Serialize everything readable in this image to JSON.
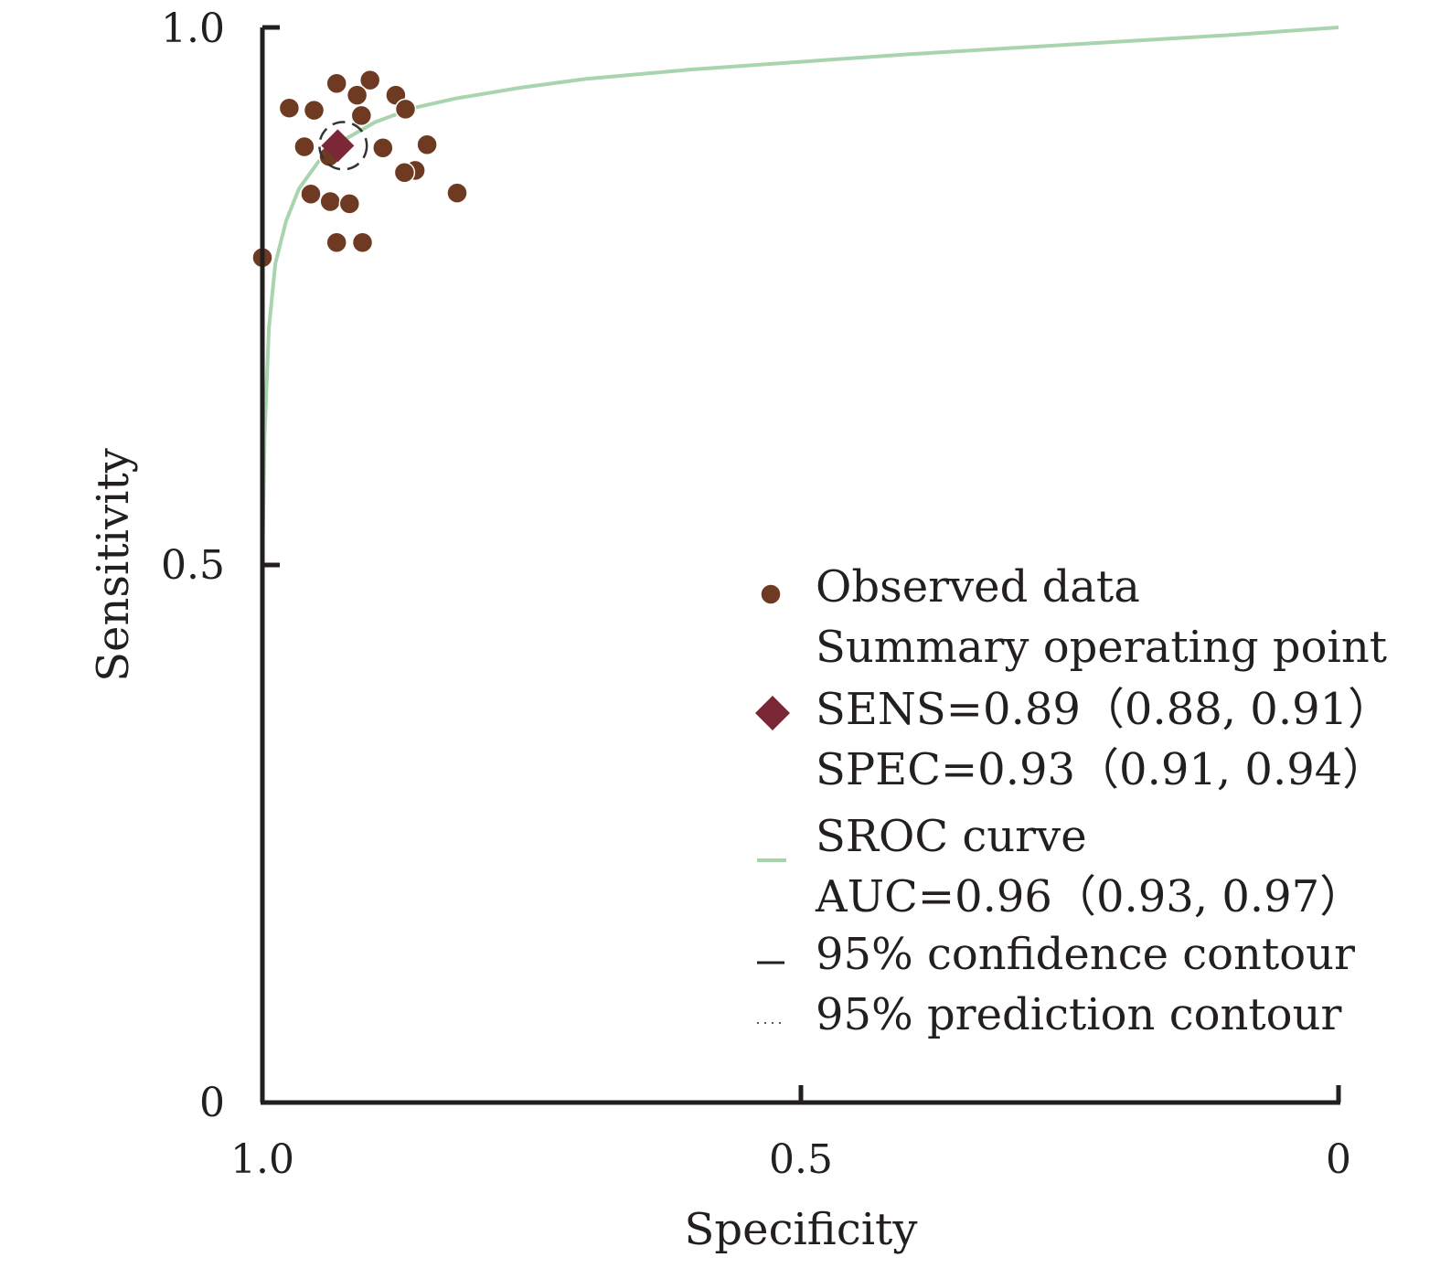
{
  "chart_data": {
    "type": "scatter",
    "title": "",
    "xlabel": "Specificity",
    "ylabel": "Sensitivity",
    "x_reversed": true,
    "xlim": [
      1.0,
      0
    ],
    "ylim": [
      0,
      1.0
    ],
    "x_ticks": [
      "1.0",
      "0.5",
      "0"
    ],
    "x_tick_values": [
      1.0,
      0.5,
      0
    ],
    "y_ticks": [
      "0",
      "0.5",
      "1.0"
    ],
    "y_tick_values": [
      0,
      0.5,
      1.0
    ],
    "grid": false,
    "legend_position": "bottom-right",
    "colors": {
      "observed": "#6e3b22",
      "summary": "#7b2736",
      "sroc": "#a8d4ae",
      "axis": "#231f20",
      "confidence": "#333333"
    },
    "series": [
      {
        "name": "Observed data",
        "kind": "scatter",
        "points": [
          {
            "spec": 1.0,
            "sens": 0.786
          },
          {
            "spec": 0.975,
            "sens": 0.925
          },
          {
            "spec": 0.952,
            "sens": 0.923
          },
          {
            "spec": 0.961,
            "sens": 0.889
          },
          {
            "spec": 0.955,
            "sens": 0.845
          },
          {
            "spec": 0.931,
            "sens": 0.948
          },
          {
            "spec": 0.9,
            "sens": 0.951
          },
          {
            "spec": 0.912,
            "sens": 0.937
          },
          {
            "spec": 0.908,
            "sens": 0.918
          },
          {
            "spec": 0.876,
            "sens": 0.937
          },
          {
            "spec": 0.867,
            "sens": 0.924
          },
          {
            "spec": 0.888,
            "sens": 0.888
          },
          {
            "spec": 0.847,
            "sens": 0.891
          },
          {
            "spec": 0.858,
            "sens": 0.867
          },
          {
            "spec": 0.868,
            "sens": 0.865
          },
          {
            "spec": 0.937,
            "sens": 0.838
          },
          {
            "spec": 0.919,
            "sens": 0.836
          },
          {
            "spec": 0.819,
            "sens": 0.846
          },
          {
            "spec": 0.931,
            "sens": 0.8
          },
          {
            "spec": 0.907,
            "sens": 0.8
          },
          {
            "spec": 0.938,
            "sens": 0.88
          }
        ]
      },
      {
        "name": "Summary operating point",
        "kind": "summary",
        "spec": 0.93,
        "sens": 0.89
      },
      {
        "name": "SROC curve",
        "kind": "line",
        "points": [
          {
            "spec": 1.0,
            "sens": 0.5
          },
          {
            "spec": 0.998,
            "sens": 0.62
          },
          {
            "spec": 0.994,
            "sens": 0.72
          },
          {
            "spec": 0.988,
            "sens": 0.78
          },
          {
            "spec": 0.978,
            "sens": 0.82
          },
          {
            "spec": 0.966,
            "sens": 0.85
          },
          {
            "spec": 0.948,
            "sens": 0.875
          },
          {
            "spec": 0.925,
            "sens": 0.895
          },
          {
            "spec": 0.895,
            "sens": 0.912
          },
          {
            "spec": 0.86,
            "sens": 0.925
          },
          {
            "spec": 0.82,
            "sens": 0.934
          },
          {
            "spec": 0.76,
            "sens": 0.944
          },
          {
            "spec": 0.7,
            "sens": 0.952
          },
          {
            "spec": 0.6,
            "sens": 0.961
          },
          {
            "spec": 0.5,
            "sens": 0.968
          },
          {
            "spec": 0.4,
            "sens": 0.975
          },
          {
            "spec": 0.3,
            "sens": 0.981
          },
          {
            "spec": 0.2,
            "sens": 0.987
          },
          {
            "spec": 0.1,
            "sens": 0.993
          },
          {
            "spec": 0.0,
            "sens": 1.0
          }
        ]
      },
      {
        "name": "95% confidence contour",
        "kind": "ellipse",
        "center": {
          "spec": 0.925,
          "sens": 0.89
        },
        "radius_spec": 0.022,
        "radius_sens": 0.022
      }
    ],
    "legend": {
      "observed": "Observed data",
      "summary_lines": [
        "Summary operating point",
        "SENS=0.89（0.88, 0.91）",
        "SPEC=0.93（0.91, 0.94）"
      ],
      "sroc_lines": [
        "SROC curve",
        "AUC=0.96（0.93, 0.97）"
      ],
      "confidence": "95% confidence contour",
      "prediction": "95% prediction contour"
    }
  }
}
